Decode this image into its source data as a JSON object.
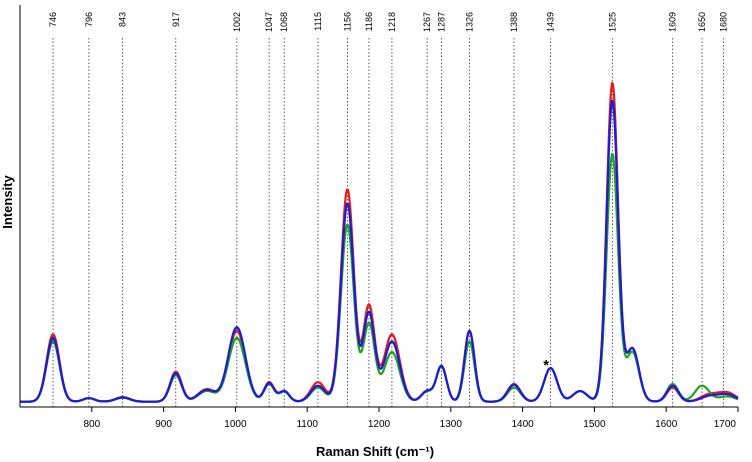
{
  "chart_data": {
    "type": "line",
    "title": "",
    "xlabel": "Raman Shift (cm⁻¹)",
    "ylabel": "Intensity",
    "xlim": [
      700,
      1700
    ],
    "ylim": [
      0,
      1.05
    ],
    "x_ticks": [
      800,
      900,
      1000,
      1100,
      1200,
      1300,
      1400,
      1500,
      1600,
      1700
    ],
    "y_ticks_shown": false,
    "grid": false,
    "legend": "none",
    "annotation": {
      "text": "*",
      "x": 1430
    },
    "peak_labels": [
      746,
      796,
      843,
      917,
      1002,
      1047,
      1068,
      1115,
      1156,
      1186,
      1218,
      1267,
      1287,
      1326,
      1388,
      1439,
      1525,
      1609,
      1650,
      1680
    ],
    "series": [
      {
        "color": "#e41a1c",
        "baseline": 0.015,
        "peaks": [
          [
            746,
            0.19,
            9
          ],
          [
            796,
            0.01,
            8
          ],
          [
            843,
            0.013,
            10
          ],
          [
            917,
            0.085,
            8
          ],
          [
            960,
            0.035,
            12
          ],
          [
            1002,
            0.2,
            12
          ],
          [
            1047,
            0.055,
            7
          ],
          [
            1068,
            0.03,
            7
          ],
          [
            1115,
            0.055,
            10
          ],
          [
            1156,
            0.6,
            9
          ],
          [
            1186,
            0.27,
            8
          ],
          [
            1218,
            0.19,
            11
          ],
          [
            1267,
            0.03,
            8
          ],
          [
            1287,
            0.1,
            7
          ],
          [
            1326,
            0.2,
            7
          ],
          [
            1388,
            0.05,
            9
          ],
          [
            1439,
            0.095,
            9
          ],
          [
            1480,
            0.03,
            10
          ],
          [
            1525,
            0.9,
            8
          ],
          [
            1553,
            0.15,
            9
          ],
          [
            1609,
            0.04,
            8
          ],
          [
            1660,
            0.02,
            12
          ],
          [
            1685,
            0.025,
            12
          ]
        ]
      },
      {
        "color": "#1fa31f",
        "baseline": 0.015,
        "peaks": [
          [
            746,
            0.17,
            9
          ],
          [
            796,
            0.01,
            8
          ],
          [
            843,
            0.011,
            10
          ],
          [
            917,
            0.075,
            8
          ],
          [
            960,
            0.03,
            12
          ],
          [
            1002,
            0.18,
            12
          ],
          [
            1047,
            0.05,
            7
          ],
          [
            1068,
            0.028,
            7
          ],
          [
            1115,
            0.04,
            10
          ],
          [
            1156,
            0.5,
            9
          ],
          [
            1186,
            0.22,
            8
          ],
          [
            1218,
            0.14,
            11
          ],
          [
            1267,
            0.028,
            8
          ],
          [
            1287,
            0.1,
            7
          ],
          [
            1326,
            0.17,
            7
          ],
          [
            1388,
            0.04,
            9
          ],
          [
            1439,
            0.095,
            9
          ],
          [
            1480,
            0.03,
            10
          ],
          [
            1525,
            0.7,
            8
          ],
          [
            1553,
            0.14,
            9
          ],
          [
            1609,
            0.05,
            8
          ],
          [
            1650,
            0.045,
            10
          ],
          [
            1685,
            0.015,
            12
          ]
        ]
      },
      {
        "color": "#1c1cd6",
        "baseline": 0.015,
        "peaks": [
          [
            746,
            0.18,
            9
          ],
          [
            796,
            0.01,
            8
          ],
          [
            843,
            0.012,
            10
          ],
          [
            917,
            0.08,
            8
          ],
          [
            960,
            0.033,
            12
          ],
          [
            1002,
            0.21,
            12
          ],
          [
            1047,
            0.052,
            7
          ],
          [
            1068,
            0.03,
            7
          ],
          [
            1115,
            0.045,
            10
          ],
          [
            1156,
            0.56,
            9
          ],
          [
            1186,
            0.25,
            8
          ],
          [
            1218,
            0.17,
            11
          ],
          [
            1267,
            0.03,
            8
          ],
          [
            1287,
            0.1,
            7
          ],
          [
            1326,
            0.2,
            7
          ],
          [
            1388,
            0.048,
            9
          ],
          [
            1439,
            0.095,
            9
          ],
          [
            1480,
            0.03,
            10
          ],
          [
            1525,
            0.85,
            8
          ],
          [
            1553,
            0.15,
            9
          ],
          [
            1609,
            0.045,
            8
          ],
          [
            1660,
            0.015,
            12
          ],
          [
            1685,
            0.02,
            12
          ]
        ]
      }
    ]
  }
}
